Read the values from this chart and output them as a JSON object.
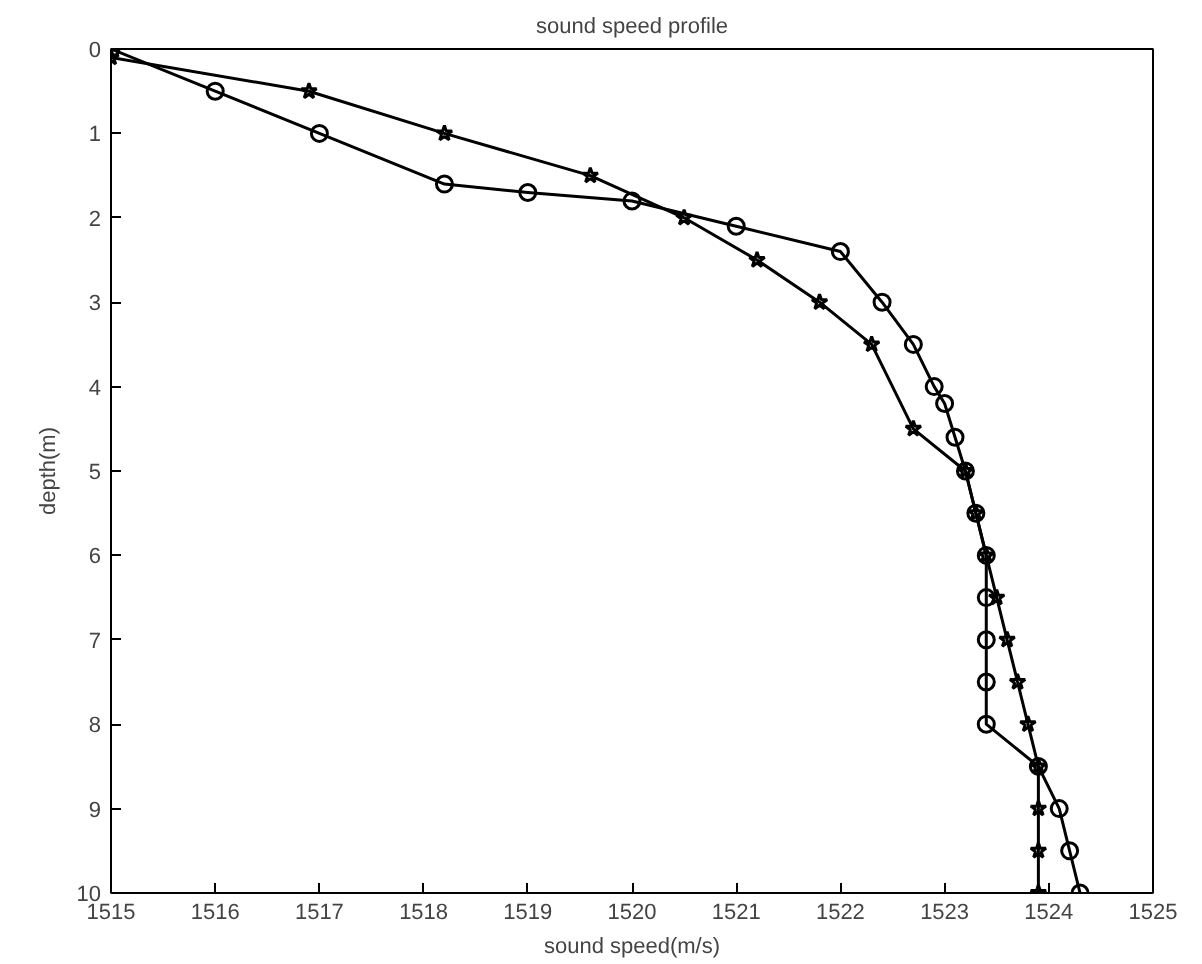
{
  "chart_data": {
    "type": "line",
    "title": "sound speed profile",
    "xlabel": "sound speed(m/s)",
    "ylabel": "depth(m)",
    "xlim": [
      1515,
      1525
    ],
    "xticks": [
      1515,
      1516,
      1517,
      1518,
      1519,
      1520,
      1521,
      1522,
      1523,
      1524,
      1525
    ],
    "ylim": [
      10,
      0
    ],
    "yticks": [
      0,
      1,
      2,
      3,
      4,
      5,
      6,
      7,
      8,
      9,
      10
    ],
    "grid": false,
    "series": [
      {
        "color": "#000000",
        "marker": "circle",
        "x": [
          1515,
          1516,
          1517,
          1518.2,
          1519,
          1520,
          1521,
          1522,
          1522.4,
          1522.7,
          1522.9,
          1523,
          1523.1,
          1523.2,
          1523.3,
          1523.4,
          1523.4,
          1523.4,
          1523.4,
          1523.4,
          1523.9,
          1524.1,
          1524.2,
          1524.3
        ],
        "values": [
          0,
          0.5,
          1,
          1.6,
          1.7,
          1.8,
          2.1,
          2.4,
          3,
          3.5,
          4,
          4.2,
          4.6,
          5,
          5.5,
          6,
          6.5,
          7,
          7.5,
          8,
          8.5,
          9,
          9.5,
          10
        ]
      },
      {
        "color": "#000000",
        "marker": "star",
        "x": [
          1515,
          1516.9,
          1518.2,
          1519.6,
          1520.5,
          1521.2,
          1521.8,
          1522.3,
          1522.7,
          1523.2,
          1523.3,
          1523.4,
          1523.5,
          1523.6,
          1523.7,
          1523.8,
          1523.9,
          1523.9,
          1523.9,
          1523.9
        ],
        "values": [
          0.1,
          0.5,
          1,
          1.5,
          2,
          2.5,
          3,
          3.5,
          4.5,
          5,
          5.5,
          6,
          6.5,
          7,
          7.5,
          8,
          8.5,
          9,
          9.5,
          10
        ]
      }
    ]
  }
}
